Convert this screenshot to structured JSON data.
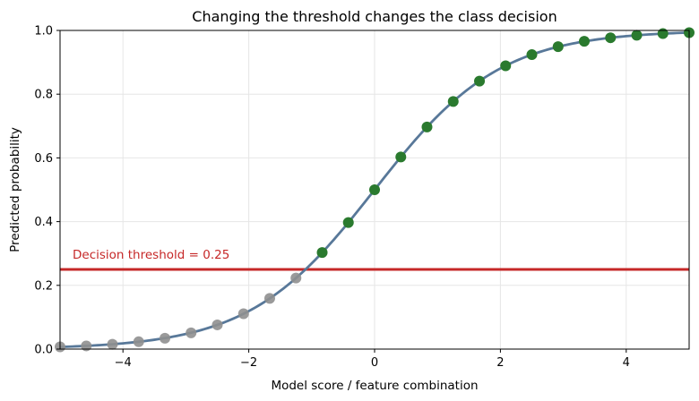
{
  "chart_data": {
    "type": "line",
    "title": "Changing the threshold changes the class decision",
    "xlabel": "Model score / feature combination",
    "ylabel": "Predicted probability",
    "xlim": [
      -5,
      5
    ],
    "ylim": [
      0,
      1
    ],
    "x_ticks": [
      -4,
      -2,
      0,
      2,
      4
    ],
    "x_tick_labels": [
      "−4",
      "−2",
      "0",
      "2",
      "4"
    ],
    "y_ticks": [
      0.0,
      0.2,
      0.4,
      0.6,
      0.8,
      1.0
    ],
    "y_tick_labels": [
      "0.0",
      "0.2",
      "0.4",
      "0.6",
      "0.8",
      "1.0"
    ],
    "grid": true,
    "series": [
      {
        "kind": "line",
        "function": "sigmoid",
        "color": "#587899",
        "x_range": [
          -5,
          5
        ]
      },
      {
        "kind": "scatter",
        "x": [
          -5.0,
          -4.583,
          -4.167,
          -3.75,
          -3.333,
          -2.917,
          -2.5,
          -2.083,
          -1.667,
          -1.25,
          -0.833,
          -0.417,
          0.0,
          0.417,
          0.833,
          1.25,
          1.667,
          2.083,
          2.5,
          2.917,
          3.333,
          3.75,
          4.167,
          4.583,
          5.0
        ],
        "y": [
          0.007,
          0.01,
          0.015,
          0.023,
          0.034,
          0.051,
          0.076,
          0.111,
          0.159,
          0.223,
          0.303,
          0.397,
          0.5,
          0.603,
          0.697,
          0.777,
          0.841,
          0.889,
          0.924,
          0.949,
          0.966,
          0.977,
          0.985,
          0.99,
          0.993
        ],
        "color_above_threshold": "#2a7a2e",
        "color_below_threshold": "#8f8f8f"
      }
    ],
    "threshold": {
      "value": 0.25,
      "label": "Decision threshold = 0.25",
      "color": "#c62828"
    }
  }
}
